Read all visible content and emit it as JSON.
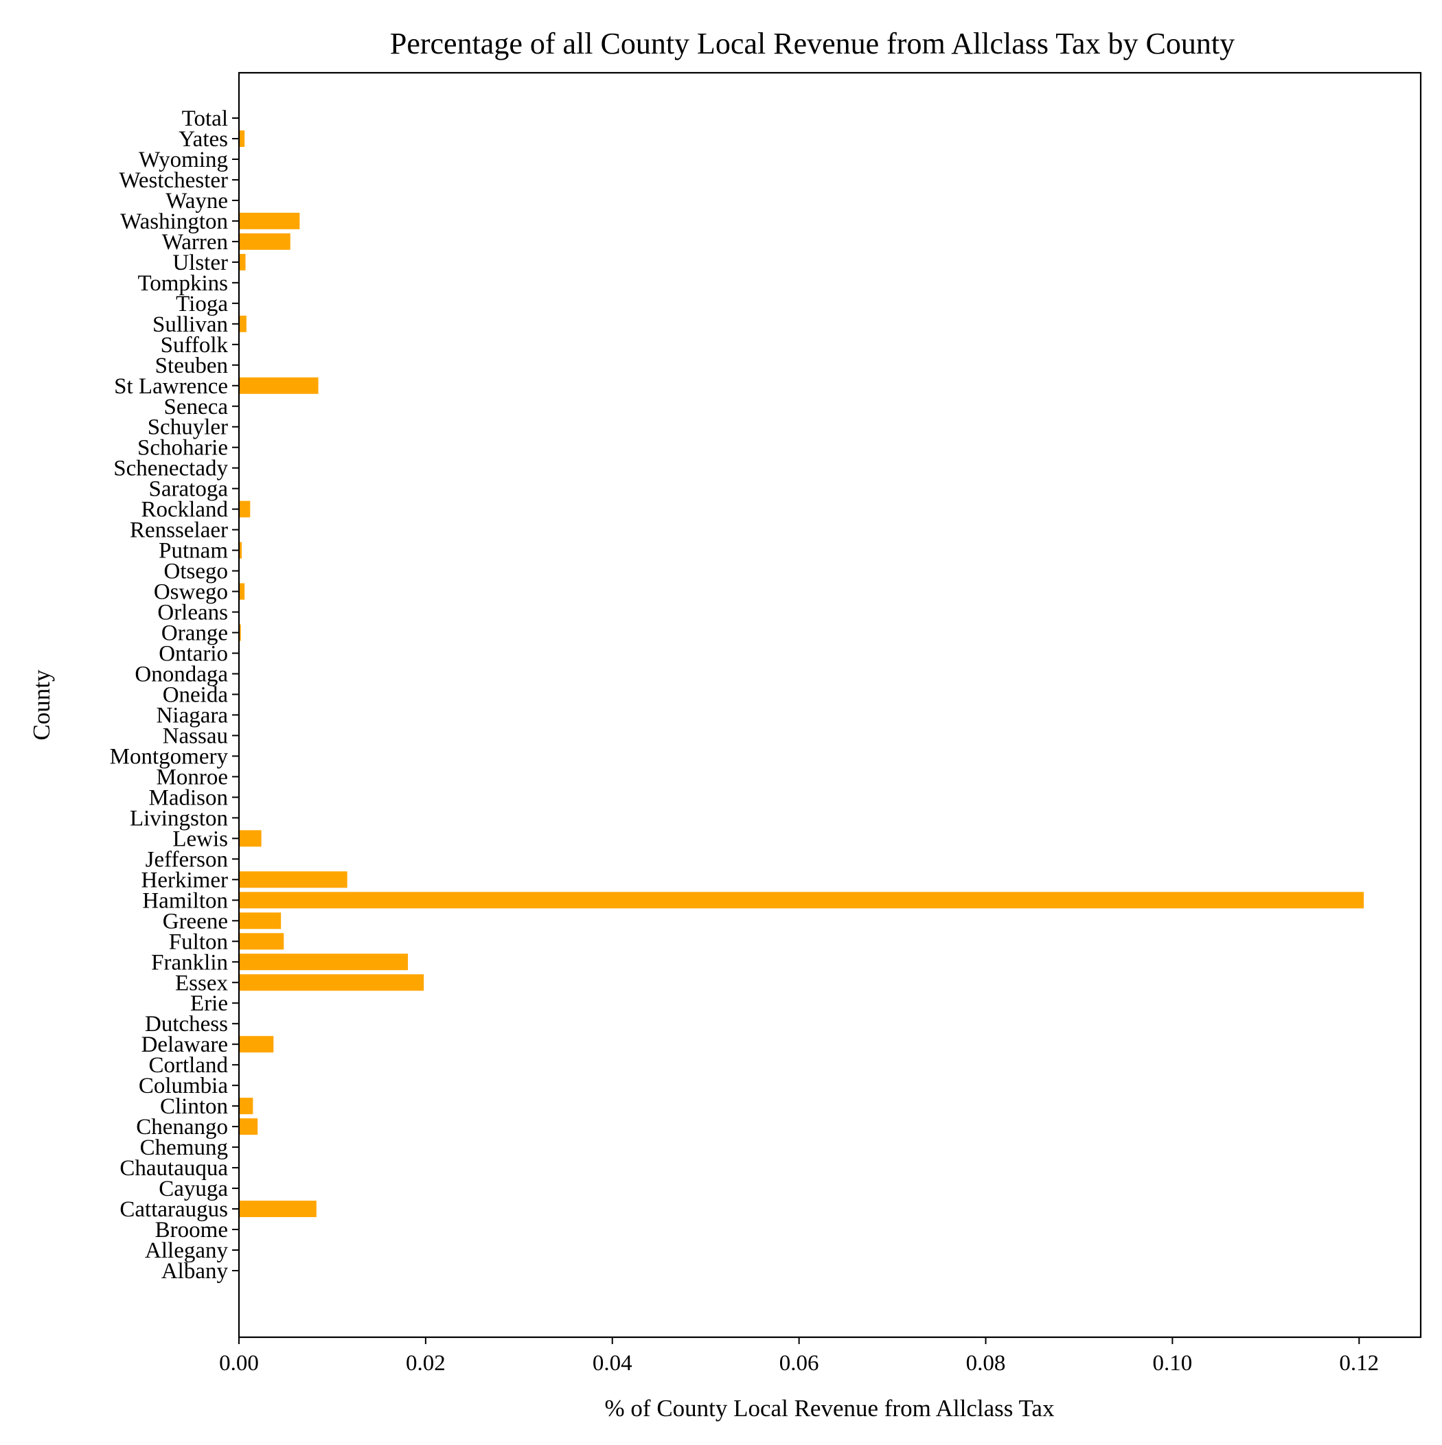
{
  "chart_data": {
    "type": "bar",
    "orientation": "horizontal",
    "title": "Percentage of all County Local Revenue from Allclass Tax by County",
    "xlabel": "% of County Local Revenue from Allclass Tax",
    "ylabel": "County",
    "xlim": [
      0,
      0.1266
    ],
    "xticks": [
      0.0,
      0.02,
      0.04,
      0.06,
      0.08,
      0.1,
      0.12
    ],
    "xtick_labels": [
      "0.00",
      "0.02",
      "0.04",
      "0.06",
      "0.08",
      "0.10",
      "0.12"
    ],
    "bar_color": "#FFA500",
    "grid": false,
    "categories": [
      "Albany",
      "Allegany",
      "Broome",
      "Cattaraugus",
      "Cayuga",
      "Chautauqua",
      "Chemung",
      "Chenango",
      "Clinton",
      "Columbia",
      "Cortland",
      "Delaware",
      "Dutchess",
      "Erie",
      "Essex",
      "Franklin",
      "Fulton",
      "Greene",
      "Hamilton",
      "Herkimer",
      "Jefferson",
      "Lewis",
      "Livingston",
      "Madison",
      "Monroe",
      "Montgomery",
      "Nassau",
      "Niagara",
      "Oneida",
      "Onondaga",
      "Ontario",
      "Orange",
      "Orleans",
      "Oswego",
      "Otsego",
      "Putnam",
      "Rensselaer",
      "Rockland",
      "Saratoga",
      "Schenectady",
      "Schoharie",
      "Schuyler",
      "Seneca",
      "St Lawrence",
      "Steuben",
      "Suffolk",
      "Sullivan",
      "Tioga",
      "Tompkins",
      "Ulster",
      "Warren",
      "Washington",
      "Wayne",
      "Westchester",
      "Wyoming",
      "Yates",
      "Total"
    ],
    "values": [
      0.0,
      0.0,
      0.0,
      0.0083,
      0.0,
      0.0,
      0.0,
      0.002,
      0.0015,
      0.0,
      0.0,
      0.0037,
      0.0,
      0.0,
      0.0198,
      0.0181,
      0.0048,
      0.0045,
      0.1205,
      0.0116,
      0.0,
      0.0024,
      0.0,
      0.0,
      0.0,
      0.0,
      0.0,
      0.0,
      0.0,
      0.0,
      0.0,
      0.0002,
      0.0,
      0.0006,
      0.0,
      0.0003,
      0.0,
      0.0012,
      0.0,
      0.0,
      0.0,
      0.0,
      0.0,
      0.0085,
      0.0,
      0.0,
      0.0008,
      0.0,
      0.0,
      0.0007,
      0.0055,
      0.0065,
      0.0,
      0.0,
      0.0,
      0.0006,
      0.0
    ]
  }
}
